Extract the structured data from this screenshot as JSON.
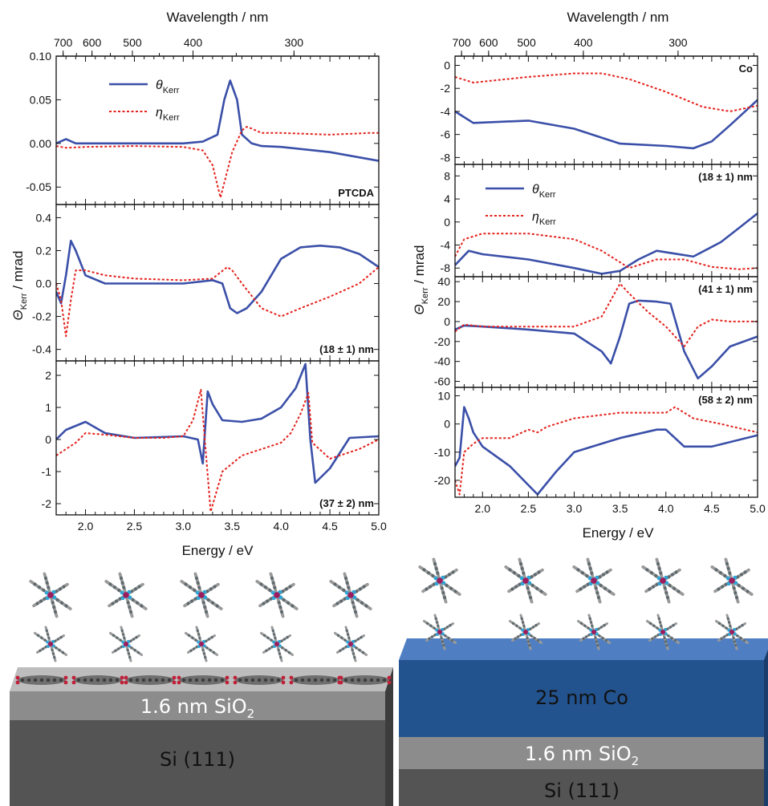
{
  "colors": {
    "theta": "#3a4fa8",
    "eta": "#e4211c",
    "co_slab": "#23538f",
    "co_top": "#4f7fc2",
    "sio2": "#8a8a8a",
    "si": "#545454"
  },
  "labels": {
    "top_axis": "Wavelength / nm",
    "bottom_axis": "Energy / eV",
    "y_axis": "Θ",
    "y_axis_sub": "Kerr",
    "y_axis_unit": " / mrad",
    "theta_sym": "θ",
    "eta_sym": "η",
    "kerr_sub": "Kerr"
  },
  "bottom_left": {
    "sio2": "1.6 nm SiO",
    "sio2_sub": "2",
    "si": "Si (111)"
  },
  "bottom_right": {
    "co": "25 nm Co",
    "sio2": "1.6 nm SiO",
    "sio2_sub": "2",
    "si": "Si (111)"
  },
  "chart_data": [
    {
      "type": "line",
      "side": "left",
      "panel": "PTCDA",
      "xlabel": "Energy / eV",
      "xlim": [
        1.7,
        5.0
      ],
      "ylim": [
        -0.07,
        0.1
      ],
      "yticks": [
        -0.05,
        0.0,
        0.05,
        0.1
      ],
      "ytick_labels": [
        "-0.05",
        "0.00",
        "0.05",
        "0.10"
      ],
      "top_axis": {
        "label": "Wavelength / nm",
        "ticks_nm": [
          700,
          600,
          500,
          400,
          300
        ]
      },
      "legend": [
        "θKerr",
        "ηKerr"
      ],
      "series": [
        {
          "name": "θKerr",
          "x": [
            1.7,
            1.8,
            1.9,
            2.0,
            2.5,
            3.0,
            3.2,
            3.35,
            3.42,
            3.48,
            3.55,
            3.6,
            3.7,
            3.8,
            4.0,
            4.5,
            5.0
          ],
          "y": [
            0.0,
            0.005,
            0.0,
            0.0,
            0.0,
            0.0,
            0.002,
            0.01,
            0.05,
            0.072,
            0.05,
            0.01,
            0.0,
            -0.003,
            -0.004,
            -0.01,
            -0.02
          ]
        },
        {
          "name": "ηKerr",
          "x": [
            1.7,
            1.8,
            2.0,
            2.5,
            3.0,
            3.2,
            3.3,
            3.38,
            3.42,
            3.5,
            3.6,
            3.65,
            3.7,
            3.8,
            4.0,
            4.5,
            4.9,
            5.0
          ],
          "y": [
            -0.003,
            -0.005,
            -0.004,
            -0.003,
            -0.004,
            -0.008,
            -0.025,
            -0.062,
            -0.045,
            -0.01,
            0.015,
            0.019,
            0.017,
            0.012,
            0.012,
            0.01,
            0.012,
            0.012
          ]
        }
      ]
    },
    {
      "type": "line",
      "side": "left",
      "panel": "(18 ± 1) nm",
      "xlim": [
        1.7,
        5.0
      ],
      "ylim": [
        -0.47,
        0.48
      ],
      "yticks": [
        -0.4,
        -0.2,
        0.0,
        0.2,
        0.4
      ],
      "ytick_labels": [
        "-0.4",
        "-0.2",
        "0.0",
        "0.2",
        "0.4"
      ],
      "series": [
        {
          "name": "θKerr",
          "x": [
            1.7,
            1.75,
            1.8,
            1.85,
            1.9,
            2.0,
            2.2,
            2.5,
            3.0,
            3.3,
            3.4,
            3.48,
            3.55,
            3.65,
            3.8,
            4.0,
            4.2,
            4.4,
            4.6,
            4.8,
            5.0
          ],
          "y": [
            -0.05,
            -0.12,
            0.05,
            0.26,
            0.2,
            0.05,
            0.0,
            0.0,
            0.0,
            0.02,
            0.0,
            -0.15,
            -0.18,
            -0.15,
            -0.05,
            0.15,
            0.22,
            0.23,
            0.22,
            0.18,
            0.1
          ]
        },
        {
          "name": "ηKerr",
          "x": [
            1.7,
            1.75,
            1.8,
            1.85,
            1.9,
            2.0,
            2.2,
            2.5,
            3.0,
            3.3,
            3.45,
            3.5,
            3.6,
            3.8,
            4.0,
            4.2,
            4.5,
            4.8,
            5.0
          ],
          "y": [
            0.0,
            -0.1,
            -0.32,
            -0.1,
            0.08,
            0.08,
            0.05,
            0.03,
            0.02,
            0.03,
            0.1,
            0.08,
            0.0,
            -0.15,
            -0.2,
            -0.15,
            -0.08,
            0.0,
            0.1
          ]
        }
      ]
    },
    {
      "type": "line",
      "side": "left",
      "panel": "(37 ± 2) nm",
      "xlim": [
        1.7,
        5.0
      ],
      "ylim": [
        -2.35,
        2.45
      ],
      "yticks": [
        -2,
        -1,
        0,
        1,
        2
      ],
      "ytick_labels": [
        "-2",
        "-1",
        "0",
        "1",
        "2"
      ],
      "xticks": [
        2.0,
        2.5,
        3.0,
        3.5,
        4.0,
        4.5,
        5.0
      ],
      "xtick_labels": [
        "2.0",
        "2.5",
        "3.0",
        "3.5",
        "4.0",
        "4.5",
        "5.0"
      ],
      "series": [
        {
          "name": "θKerr",
          "x": [
            1.7,
            1.8,
            2.0,
            2.2,
            2.5,
            3.0,
            3.15,
            3.2,
            3.25,
            3.3,
            3.4,
            3.6,
            3.8,
            4.0,
            4.15,
            4.25,
            4.3,
            4.35,
            4.5,
            4.7,
            5.0
          ],
          "y": [
            0.0,
            0.3,
            0.55,
            0.2,
            0.05,
            0.1,
            0.0,
            -0.75,
            1.5,
            1.1,
            0.6,
            0.55,
            0.65,
            1.0,
            1.6,
            2.35,
            0.0,
            -1.35,
            -0.9,
            0.05,
            0.1
          ]
        },
        {
          "name": "ηKerr",
          "x": [
            1.7,
            1.8,
            1.9,
            2.0,
            2.2,
            2.5,
            2.8,
            3.0,
            3.1,
            3.18,
            3.22,
            3.28,
            3.4,
            3.6,
            3.8,
            4.0,
            4.1,
            4.2,
            4.28,
            4.32,
            4.5,
            4.8,
            5.0
          ],
          "y": [
            -0.5,
            -0.3,
            -0.1,
            0.2,
            0.15,
            0.05,
            0.05,
            0.1,
            0.6,
            1.55,
            0.0,
            -2.25,
            -1.0,
            -0.5,
            -0.3,
            -0.1,
            0.2,
            0.8,
            1.45,
            -0.1,
            -0.6,
            -0.3,
            0.0
          ]
        }
      ]
    },
    {
      "type": "line",
      "side": "right",
      "panel": "Co",
      "xlim": [
        1.7,
        5.0
      ],
      "ylim": [
        -8.6,
        0.8
      ],
      "yticks": [
        0,
        -2,
        -4,
        -6,
        -8
      ],
      "ytick_labels": [
        "0",
        "-2",
        "-4",
        "-6",
        "-8"
      ],
      "top_axis": {
        "label": "Wavelength / nm",
        "ticks_nm": [
          700,
          600,
          500,
          400,
          300
        ]
      },
      "series": [
        {
          "name": "θKerr",
          "x": [
            1.7,
            1.9,
            2.5,
            3.0,
            3.5,
            4.0,
            4.3,
            4.5,
            4.7,
            5.0
          ],
          "y": [
            -4.0,
            -5.0,
            -4.8,
            -5.5,
            -6.8,
            -7.0,
            -7.2,
            -6.6,
            -5.2,
            -3.0
          ]
        },
        {
          "name": "ηKerr",
          "x": [
            1.7,
            1.9,
            2.5,
            3.0,
            3.3,
            3.6,
            4.0,
            4.4,
            4.7,
            5.0
          ],
          "y": [
            -1.0,
            -1.5,
            -1.0,
            -0.7,
            -0.7,
            -1.2,
            -2.3,
            -3.6,
            -4.0,
            -3.5
          ]
        }
      ]
    },
    {
      "type": "line",
      "side": "right",
      "panel": "(18 ± 1) nm",
      "xlim": [
        1.7,
        5.0
      ],
      "ylim": [
        -9.5,
        10.0
      ],
      "yticks": [
        8,
        4,
        0,
        -4,
        -8
      ],
      "ytick_labels": [
        "8",
        "4",
        "0",
        "-4",
        "-8"
      ],
      "legend": [
        "θKerr",
        "ηKerr"
      ],
      "series": [
        {
          "name": "θKerr",
          "x": [
            1.7,
            1.85,
            2.0,
            2.5,
            3.0,
            3.3,
            3.5,
            3.7,
            3.9,
            4.1,
            4.3,
            4.6,
            4.8,
            5.0
          ],
          "y": [
            -7.5,
            -5.0,
            -5.6,
            -6.5,
            -8.0,
            -9.0,
            -8.5,
            -6.5,
            -5.0,
            -5.5,
            -6.0,
            -3.5,
            -1.0,
            1.5
          ]
        },
        {
          "name": "ηKerr",
          "x": [
            1.7,
            1.8,
            2.0,
            2.5,
            3.0,
            3.3,
            3.6,
            3.9,
            4.2,
            4.5,
            4.8,
            5.0
          ],
          "y": [
            -6.0,
            -3.0,
            -2.0,
            -2.0,
            -3.0,
            -5.0,
            -8.0,
            -6.5,
            -6.5,
            -7.8,
            -8.2,
            -8.0
          ]
        }
      ]
    },
    {
      "type": "line",
      "side": "right",
      "panel": "(41 ± 1) nm",
      "xlim": [
        1.7,
        5.0
      ],
      "ylim": [
        -66,
        45
      ],
      "yticks": [
        40,
        20,
        0,
        -20,
        -40,
        -60
      ],
      "ytick_labels": [
        "40",
        "20",
        "0",
        "-20",
        "-40",
        "-60"
      ],
      "series": [
        {
          "name": "θKerr",
          "x": [
            1.7,
            1.8,
            2.0,
            2.5,
            3.0,
            3.3,
            3.4,
            3.5,
            3.6,
            3.7,
            3.9,
            4.05,
            4.2,
            4.35,
            4.5,
            4.7,
            5.0
          ],
          "y": [
            -8,
            -4,
            -5,
            -8,
            -12,
            -30,
            -42,
            -15,
            18,
            21,
            20,
            18,
            -30,
            -57,
            -45,
            -25,
            -15
          ]
        },
        {
          "name": "ηKerr",
          "x": [
            1.7,
            1.8,
            2.0,
            2.5,
            3.0,
            3.3,
            3.5,
            3.6,
            3.8,
            4.0,
            4.2,
            4.35,
            4.5,
            4.7,
            5.0
          ],
          "y": [
            -10,
            -3,
            -5,
            -5,
            -5,
            5,
            38,
            28,
            10,
            -5,
            -25,
            -5,
            2,
            0,
            0
          ]
        }
      ]
    },
    {
      "type": "line",
      "side": "right",
      "panel": "(58 ± 2) nm",
      "xlim": [
        1.7,
        5.0
      ],
      "ylim": [
        -26,
        13
      ],
      "yticks": [
        10,
        0,
        -10,
        -20
      ],
      "ytick_labels": [
        "10",
        "0",
        "-10",
        "-20"
      ],
      "xticks": [
        2.0,
        2.5,
        3.0,
        3.5,
        4.0,
        4.5,
        5.0
      ],
      "xtick_labels": [
        "2.0",
        "2.5",
        "3.0",
        "3.5",
        "4.0",
        "4.5",
        "5.0"
      ],
      "series": [
        {
          "name": "θKerr",
          "x": [
            1.7,
            1.75,
            1.8,
            1.85,
            1.9,
            2.0,
            2.3,
            2.6,
            2.8,
            3.0,
            3.5,
            3.9,
            4.0,
            4.2,
            4.5,
            5.0
          ],
          "y": [
            -15,
            -12,
            6,
            2,
            -3,
            -8,
            -15,
            -25,
            -17,
            -10,
            -5,
            -2,
            -2,
            -8,
            -8,
            -4
          ]
        },
        {
          "name": "ηKerr",
          "x": [
            1.7,
            1.75,
            1.8,
            1.9,
            2.0,
            2.3,
            2.5,
            2.6,
            2.7,
            3.0,
            3.5,
            4.0,
            4.1,
            4.3,
            4.6,
            5.0
          ],
          "y": [
            -20,
            -25,
            -10,
            -7,
            -5,
            -5,
            -2,
            -3,
            -1,
            2,
            4,
            4,
            6,
            2,
            0,
            -3
          ]
        }
      ]
    }
  ]
}
